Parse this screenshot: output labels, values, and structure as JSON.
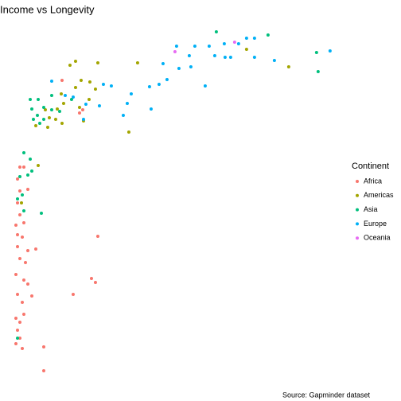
{
  "chart_data": {
    "type": "scatter",
    "title": "Income vs Longevity",
    "caption": "Source: Gapminder dataset",
    "legend_title": "Continent",
    "legend": "right",
    "xlim": [
      0,
      50000
    ],
    "ylim": [
      38,
      84
    ],
    "series": [
      {
        "name": "Africa",
        "color": "#F8766D",
        "x": [
          1348,
          1960,
          980,
          1348,
          2573,
          980,
          1348,
          735,
          1960,
          980,
          1715,
          980,
          2573,
          3798,
          1348,
          2205,
          735,
          1960,
          2573,
          980,
          1715,
          735,
          1348,
          980,
          1960,
          1348,
          735,
          1715,
          5023,
          5023,
          13353,
          12373,
          12985,
          9555,
          3185,
          7840,
          10535,
          11025
        ],
        "values": [
          65.2,
          65.2,
          63.7,
          62.2,
          62.4,
          60.7,
          59.2,
          57.9,
          58.2,
          56.7,
          56.4,
          55.2,
          54.7,
          54.9,
          53.7,
          53.2,
          51.7,
          51.0,
          50.5,
          49.2,
          48.2,
          46.2,
          45.7,
          44.7,
          46.7,
          43.7,
          43.0,
          42.4,
          42.6,
          39.6,
          56.5,
          51.2,
          50.7,
          49.2,
          49.0,
          76.1,
          72.0,
          72.4
        ]
      },
      {
        "name": "Americas",
        "color": "#A3A500",
        "x": [
          9923,
          9065,
          13353,
          19478,
          42753,
          10780,
          12128,
          9923,
          12985,
          7718,
          12005,
          8085,
          7105,
          5268,
          5880,
          6860,
          3798,
          5635,
          7840,
          11148,
          10535,
          18130,
          36260,
          4165,
          1593
        ],
        "values": [
          78.5,
          78.0,
          78.3,
          78.3,
          77.8,
          76.1,
          75.9,
          75.2,
          75.0,
          74.4,
          73.7,
          73.2,
          72.5,
          72.4,
          71.4,
          71.2,
          70.4,
          70.2,
          70.7,
          71.0,
          72.7,
          69.6,
          80.0,
          65.4,
          60.7
        ]
      },
      {
        "name": "Asia",
        "color": "#00BF7D",
        "x": [
          31605,
          39568,
          47040,
          47285,
          2940,
          4165,
          3185,
          5023,
          4043,
          6248,
          6248,
          7473,
          9310,
          5023,
          4410,
          3430,
          1960,
          2940,
          3185,
          1348,
          2573,
          1715,
          980,
          1960,
          4655,
          980
        ],
        "values": [
          82.2,
          81.8,
          79.6,
          77.2,
          73.7,
          73.7,
          72.5,
          72.7,
          71.7,
          72.4,
          74.2,
          72.2,
          73.7,
          71.2,
          70.7,
          71.2,
          67.0,
          66.2,
          64.7,
          64.0,
          64.2,
          61.7,
          61.2,
          59.7,
          59.4,
          43.7
        ]
      },
      {
        "name": "Europe",
        "color": "#00B0F6",
        "x": [
          25480,
          28298,
          30503,
          32830,
          36260,
          37485,
          35035,
          33810,
          32953,
          27440,
          31360,
          37485,
          40548,
          49123,
          25848,
          27685,
          23398,
          24010,
          22785,
          29890,
          21315,
          17885,
          21560,
          18498,
          14210,
          15435,
          6248,
          8330,
          9555,
          11515,
          13598,
          11148,
          17273
        ],
        "values": [
          80.4,
          80.4,
          80.4,
          80.7,
          81.4,
          81.4,
          80.7,
          79.0,
          79.0,
          79.2,
          79.2,
          79.0,
          78.6,
          79.8,
          77.6,
          77.8,
          78.2,
          76.2,
          75.6,
          75.4,
          75.3,
          73.2,
          72.5,
          74.4,
          75.6,
          75.4,
          76.0,
          74.2,
          74.0,
          73.1,
          72.9,
          71.2,
          71.7
        ]
      },
      {
        "name": "Oceania",
        "color": "#E76BF3",
        "x": [
          34423,
          25235
        ],
        "values": [
          80.9,
          79.7
        ]
      }
    ]
  }
}
